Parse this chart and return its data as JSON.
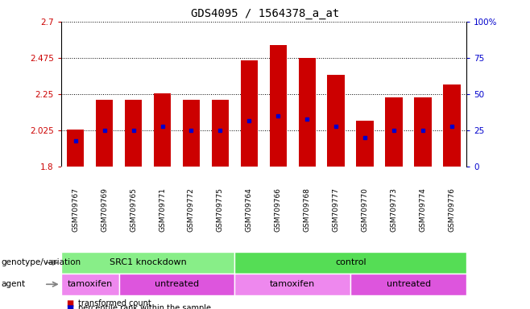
{
  "title": "GDS4095 / 1564378_a_at",
  "samples": [
    "GSM709767",
    "GSM709769",
    "GSM709765",
    "GSM709771",
    "GSM709772",
    "GSM709775",
    "GSM709764",
    "GSM709766",
    "GSM709768",
    "GSM709777",
    "GSM709770",
    "GSM709773",
    "GSM709774",
    "GSM709776"
  ],
  "bar_tops": [
    2.03,
    2.215,
    2.215,
    2.255,
    2.215,
    2.215,
    2.46,
    2.555,
    2.475,
    2.37,
    2.085,
    2.23,
    2.23,
    2.31
  ],
  "percentile_ranks": [
    18,
    25,
    25,
    28,
    25,
    25,
    32,
    35,
    33,
    28,
    20,
    25,
    25,
    28
  ],
  "ymin": 1.8,
  "ymax": 2.7,
  "yticks": [
    1.8,
    2.025,
    2.25,
    2.475,
    2.7
  ],
  "ytick_labels": [
    "1.8",
    "2.025",
    "2.25",
    "2.475",
    "2.7"
  ],
  "right_yticks": [
    0,
    25,
    50,
    75,
    100
  ],
  "right_ytick_labels": [
    "0",
    "25",
    "50",
    "75",
    "100%"
  ],
  "bar_color": "#cc0000",
  "dot_color": "#0000cc",
  "bar_base": 1.8,
  "bar_width": 0.6,
  "groups": [
    {
      "label": "SRC1 knockdown",
      "start": 0,
      "end": 6,
      "color": "#88ee88"
    },
    {
      "label": "control",
      "start": 6,
      "end": 14,
      "color": "#55dd55"
    }
  ],
  "agents": [
    {
      "label": "tamoxifen",
      "start": 0,
      "end": 2,
      "color": "#ee88ee"
    },
    {
      "label": "untreated",
      "start": 2,
      "end": 6,
      "color": "#dd55dd"
    },
    {
      "label": "tamoxifen",
      "start": 6,
      "end": 10,
      "color": "#ee88ee"
    },
    {
      "label": "untreated",
      "start": 10,
      "end": 14,
      "color": "#dd55dd"
    }
  ],
  "genotype_label": "genotype/variation",
  "agent_label": "agent",
  "legend_items": [
    {
      "label": "transformed count",
      "color": "#cc0000"
    },
    {
      "label": "percentile rank within the sample",
      "color": "#0000cc"
    }
  ],
  "title_fontsize": 10,
  "tick_fontsize": 7.5,
  "label_fontsize": 8,
  "background_color": "#ffffff",
  "plot_bg_color": "#ffffff",
  "xtick_bg_color": "#d0d0d0"
}
